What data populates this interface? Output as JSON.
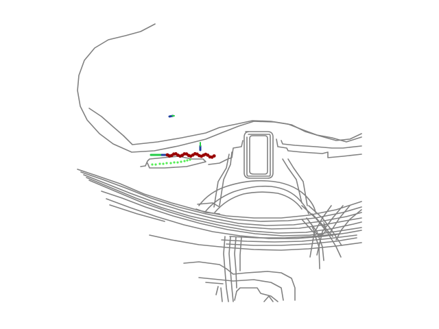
{
  "map": {
    "background_color": "#ffffff",
    "road_color": "#808080",
    "trajectory_colors": {
      "history": "#1f3f9f",
      "ego_future": "#22cc44",
      "prediction": "#990000",
      "predicted_points": "#55ee55"
    }
  }
}
